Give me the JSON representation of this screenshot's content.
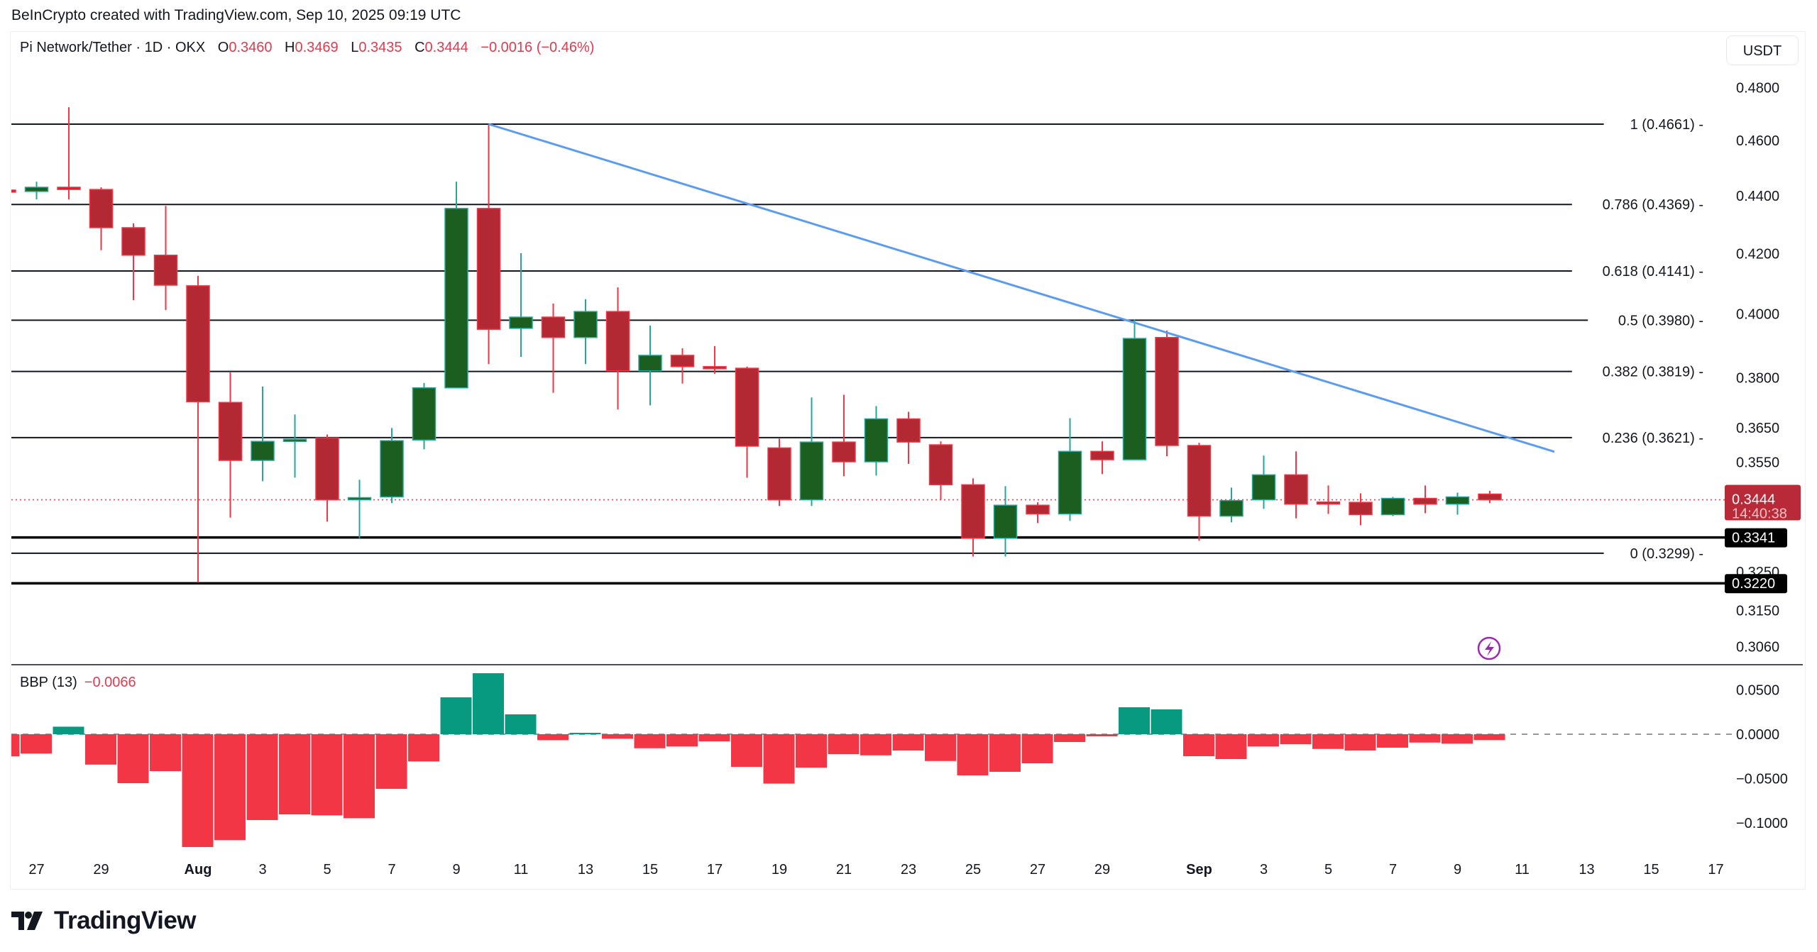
{
  "header": {
    "credit": "BeInCrypto created with TradingView.com, Sep 10, 2025 09:19 UTC"
  },
  "legend": {
    "symbol": "Pi Network/Tether · 1D · OKX",
    "open_label": "O",
    "open": "0.3460",
    "high_label": "H",
    "high": "0.3469",
    "low_label": "L",
    "low": "0.3435",
    "close_label": "C",
    "close": "0.3444",
    "change": "−0.0016 (−0.46%)"
  },
  "currency_button": "USDT",
  "indicator": {
    "name": "BBP (13)",
    "value": "−0.0066"
  },
  "price_tag": {
    "price": "0.3444",
    "countdown": "14:40:38",
    "color": "#b82a37"
  },
  "line_tags": [
    {
      "price": "0.3341"
    },
    {
      "price": "0.3220"
    }
  ],
  "footer": {
    "brand": "TradingView"
  },
  "colors": {
    "up_body": "#1b5e20",
    "up_border": "#26a69a",
    "up_wick": "#26a69a",
    "down_body": "#b22833",
    "down_border": "#f23645",
    "down_wick": "#f23645",
    "bbp_pos": "#089981",
    "bbp_neg": "#f23645",
    "trendline": "#5b9cf0",
    "fib": "#131722",
    "alert_icon": "#9c27b0"
  },
  "chart_data": [
    {
      "type": "candlestick",
      "title": "Pi Network/Tether · 1D · OKX",
      "ylabel": "USDT",
      "y_scale": "log",
      "ylim": [
        0.3,
        0.487
      ],
      "y_ticks": [
        "0.4800",
        "0.4600",
        "0.4400",
        "0.4200",
        "0.4000",
        "0.3800",
        "0.3650",
        "0.3550",
        "0.3250",
        "0.3150",
        "0.3060"
      ],
      "x_ticks": [
        "27",
        "29",
        "Aug",
        "3",
        "5",
        "7",
        "9",
        "11",
        "13",
        "15",
        "17",
        "19",
        "21",
        "23",
        "25",
        "27",
        "29",
        "Sep",
        "3",
        "5",
        "7",
        "9",
        "11",
        "13",
        "15",
        "17"
      ],
      "x_tick_days": [
        -5,
        -3,
        0,
        2,
        4,
        6,
        8,
        10,
        12,
        14,
        16,
        18,
        20,
        22,
        24,
        26,
        28,
        31,
        33,
        35,
        37,
        39,
        41,
        43,
        45,
        47
      ],
      "candles": [
        {
          "date": "Jul 26",
          "o": 0.442,
          "h": 0.4425,
          "l": 0.441,
          "c": 0.4415
        },
        {
          "date": "Jul 27",
          "o": 0.4415,
          "h": 0.445,
          "l": 0.4387,
          "c": 0.443
        },
        {
          "date": "Jul 28",
          "o": 0.443,
          "h": 0.4725,
          "l": 0.4387,
          "c": 0.4422
        },
        {
          "date": "Jul 29",
          "o": 0.4422,
          "h": 0.443,
          "l": 0.4211,
          "c": 0.4288
        },
        {
          "date": "Jul 30",
          "o": 0.4288,
          "h": 0.4303,
          "l": 0.4045,
          "c": 0.4194
        },
        {
          "date": "Jul 31",
          "o": 0.4194,
          "h": 0.4364,
          "l": 0.4013,
          "c": 0.4094
        },
        {
          "date": "Aug 1",
          "o": 0.4092,
          "h": 0.4125,
          "l": 0.3222,
          "c": 0.3727
        },
        {
          "date": "Aug 2",
          "o": 0.3725,
          "h": 0.3816,
          "l": 0.3395,
          "c": 0.3555
        },
        {
          "date": "Aug 3",
          "o": 0.3555,
          "h": 0.3773,
          "l": 0.3496,
          "c": 0.361
        },
        {
          "date": "Aug 4",
          "o": 0.361,
          "h": 0.3689,
          "l": 0.3506,
          "c": 0.3616
        },
        {
          "date": "Aug 5",
          "o": 0.362,
          "h": 0.363,
          "l": 0.3384,
          "c": 0.3444
        },
        {
          "date": "Aug 6",
          "o": 0.3444,
          "h": 0.35,
          "l": 0.3339,
          "c": 0.345
        },
        {
          "date": "Aug 7",
          "o": 0.3452,
          "h": 0.3649,
          "l": 0.3435,
          "c": 0.3612
        },
        {
          "date": "Aug 8",
          "o": 0.3614,
          "h": 0.3784,
          "l": 0.3587,
          "c": 0.3769
        },
        {
          "date": "Aug 9",
          "o": 0.3769,
          "h": 0.445,
          "l": 0.3769,
          "c": 0.4355
        },
        {
          "date": "Aug 10",
          "o": 0.4355,
          "h": 0.4661,
          "l": 0.3842,
          "c": 0.3951
        },
        {
          "date": "Aug 11",
          "o": 0.3954,
          "h": 0.4201,
          "l": 0.3864,
          "c": 0.399
        },
        {
          "date": "Aug 12",
          "o": 0.399,
          "h": 0.4034,
          "l": 0.3754,
          "c": 0.3925
        },
        {
          "date": "Aug 13",
          "o": 0.3925,
          "h": 0.4048,
          "l": 0.3842,
          "c": 0.4008
        },
        {
          "date": "Aug 14",
          "o": 0.4008,
          "h": 0.4087,
          "l": 0.3704,
          "c": 0.3821
        },
        {
          "date": "Aug 15",
          "o": 0.3821,
          "h": 0.3963,
          "l": 0.3716,
          "c": 0.3869
        },
        {
          "date": "Aug 16",
          "o": 0.3869,
          "h": 0.3891,
          "l": 0.3782,
          "c": 0.3834
        },
        {
          "date": "Aug 17",
          "o": 0.3834,
          "h": 0.3898,
          "l": 0.3812,
          "c": 0.3829
        },
        {
          "date": "Aug 18",
          "o": 0.3829,
          "h": 0.3834,
          "l": 0.3506,
          "c": 0.3596
        },
        {
          "date": "Aug 19",
          "o": 0.3591,
          "h": 0.3618,
          "l": 0.3427,
          "c": 0.3444
        },
        {
          "date": "Aug 20",
          "o": 0.3444,
          "h": 0.374,
          "l": 0.3427,
          "c": 0.3608
        },
        {
          "date": "Aug 21",
          "o": 0.3608,
          "h": 0.3748,
          "l": 0.351,
          "c": 0.3551
        },
        {
          "date": "Aug 22",
          "o": 0.3551,
          "h": 0.3714,
          "l": 0.3512,
          "c": 0.3676
        },
        {
          "date": "Aug 23",
          "o": 0.3676,
          "h": 0.3697,
          "l": 0.3545,
          "c": 0.3608
        },
        {
          "date": "Aug 24",
          "o": 0.36,
          "h": 0.361,
          "l": 0.3444,
          "c": 0.3486
        },
        {
          "date": "Aug 25",
          "o": 0.3486,
          "h": 0.3504,
          "l": 0.329,
          "c": 0.3339
        },
        {
          "date": "Aug 26",
          "o": 0.3339,
          "h": 0.3482,
          "l": 0.329,
          "c": 0.3429
        },
        {
          "date": "Aug 27",
          "o": 0.3429,
          "h": 0.3437,
          "l": 0.338,
          "c": 0.3405
        },
        {
          "date": "Aug 28",
          "o": 0.3405,
          "h": 0.3678,
          "l": 0.3386,
          "c": 0.3581
        },
        {
          "date": "Aug 29",
          "o": 0.3581,
          "h": 0.361,
          "l": 0.3516,
          "c": 0.3557
        },
        {
          "date": "Aug 30",
          "o": 0.3557,
          "h": 0.3983,
          "l": 0.3557,
          "c": 0.3922
        },
        {
          "date": "Aug 31",
          "o": 0.3925,
          "h": 0.3947,
          "l": 0.3567,
          "c": 0.3598
        },
        {
          "date": "Sep 1",
          "o": 0.3598,
          "h": 0.3606,
          "l": 0.3332,
          "c": 0.3399
        },
        {
          "date": "Sep 2",
          "o": 0.3399,
          "h": 0.3478,
          "l": 0.3382,
          "c": 0.3442
        },
        {
          "date": "Sep 3",
          "o": 0.3444,
          "h": 0.3569,
          "l": 0.3419,
          "c": 0.3514
        },
        {
          "date": "Sep 4",
          "o": 0.3514,
          "h": 0.3581,
          "l": 0.3393,
          "c": 0.3432
        },
        {
          "date": "Sep 5",
          "o": 0.3438,
          "h": 0.3484,
          "l": 0.3405,
          "c": 0.3435
        },
        {
          "date": "Sep 6",
          "o": 0.3437,
          "h": 0.3462,
          "l": 0.3374,
          "c": 0.3403
        },
        {
          "date": "Sep 7",
          "o": 0.3403,
          "h": 0.3452,
          "l": 0.3399,
          "c": 0.3448
        },
        {
          "date": "Sep 8",
          "o": 0.3448,
          "h": 0.3484,
          "l": 0.3407,
          "c": 0.3432
        },
        {
          "date": "Sep 9",
          "o": 0.3432,
          "h": 0.3464,
          "l": 0.3403,
          "c": 0.3452
        },
        {
          "date": "Sep 10",
          "o": 0.346,
          "h": 0.3469,
          "l": 0.3435,
          "c": 0.3444
        }
      ],
      "fib_levels": [
        {
          "ratio": "1",
          "price": 0.4661,
          "label": "1 (0.4661)"
        },
        {
          "ratio": "0.786",
          "price": 0.4369,
          "label": "0.786 (0.4369)"
        },
        {
          "ratio": "0.618",
          "price": 0.4141,
          "label": "0.618 (0.4141)"
        },
        {
          "ratio": "0.5",
          "price": 0.398,
          "label": "0.5 (0.3980)"
        },
        {
          "ratio": "0.382",
          "price": 0.3819,
          "label": "0.382 (0.3819)"
        },
        {
          "ratio": "0.236",
          "price": 0.3621,
          "label": "0.236 (0.3621)"
        },
        {
          "ratio": "0",
          "price": 0.3299,
          "label": "0 (0.3299)"
        }
      ],
      "horizontal_lines": [
        0.3341,
        0.322
      ],
      "current_price": 0.3444,
      "trendline": {
        "from": {
          "date": "Aug 10",
          "price": 0.4661
        },
        "to": {
          "date": "Sep 12",
          "price": 0.358
        }
      }
    },
    {
      "type": "bar",
      "title": "BBP (13)",
      "ylim": [
        -0.13,
        0.075
      ],
      "y_ticks": [
        "0.0500",
        "0.0000",
        "−0.0500",
        "−0.1000"
      ],
      "categories": [
        "Jul 26",
        "Jul 27",
        "Jul 28",
        "Jul 29",
        "Jul 30",
        "Jul 31",
        "Aug 1",
        "Aug 2",
        "Aug 3",
        "Aug 4",
        "Aug 5",
        "Aug 6",
        "Aug 7",
        "Aug 8",
        "Aug 9",
        "Aug 10",
        "Aug 11",
        "Aug 12",
        "Aug 13",
        "Aug 14",
        "Aug 15",
        "Aug 16",
        "Aug 17",
        "Aug 18",
        "Aug 19",
        "Aug 20",
        "Aug 21",
        "Aug 22",
        "Aug 23",
        "Aug 24",
        "Aug 25",
        "Aug 26",
        "Aug 27",
        "Aug 28",
        "Aug 29",
        "Aug 30",
        "Aug 31",
        "Sep 1",
        "Sep 2",
        "Sep 3",
        "Sep 4",
        "Sep 5",
        "Sep 6",
        "Sep 7",
        "Sep 8",
        "Sep 9",
        "Sep 10"
      ],
      "values": [
        -0.025,
        -0.0219,
        0.0085,
        -0.0343,
        -0.0552,
        -0.0416,
        -0.1272,
        -0.1195,
        -0.0968,
        -0.0904,
        -0.0915,
        -0.0947,
        -0.0616,
        -0.0307,
        0.0416,
        0.0688,
        0.0224,
        -0.0067,
        0.0016,
        -0.0051,
        -0.0158,
        -0.0139,
        -0.008,
        -0.0368,
        -0.0557,
        -0.0378,
        -0.0224,
        -0.0238,
        -0.0184,
        -0.0302,
        -0.0464,
        -0.0424,
        -0.0328,
        -0.0088,
        -0.0024,
        0.0304,
        0.028,
        -0.0248,
        -0.028,
        -0.0139,
        -0.0112,
        -0.0166,
        -0.0184,
        -0.0152,
        -0.0094,
        -0.0107,
        -0.0066
      ]
    }
  ]
}
